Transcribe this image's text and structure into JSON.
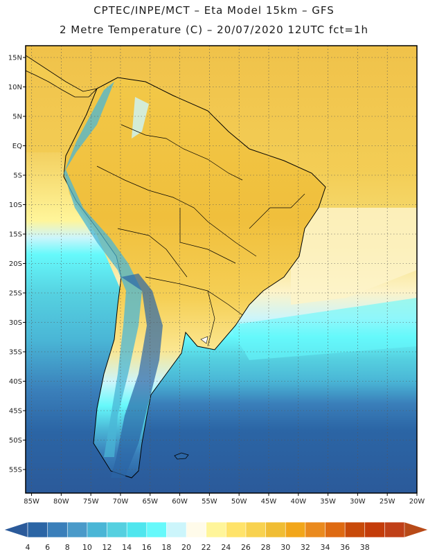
{
  "title": {
    "line1": "CPTEC/INPE/MCT –  Eta Model 15km – GFS",
    "line2": "2 Metre Temperature (C) – 20/07/2020 12UTC fct=1h"
  },
  "map": {
    "lon_range": [
      -86,
      -20
    ],
    "lat_range": [
      -59,
      17
    ],
    "lon_ticks": [
      "85W",
      "80W",
      "75W",
      "70W",
      "65W",
      "60W",
      "55W",
      "50W",
      "45W",
      "40W",
      "35W",
      "30W",
      "25W",
      "20W"
    ],
    "lon_values": [
      -85,
      -80,
      -75,
      -70,
      -65,
      -60,
      -55,
      -50,
      -45,
      -40,
      -35,
      -30,
      -25,
      -20
    ],
    "lat_ticks": [
      "15N",
      "10N",
      "5N",
      "EQ",
      "5S",
      "10S",
      "15S",
      "20S",
      "25S",
      "30S",
      "35S",
      "40S",
      "45S",
      "50S",
      "55S"
    ],
    "lat_values": [
      15,
      10,
      5,
      0,
      -5,
      -10,
      -15,
      -20,
      -25,
      -30,
      -35,
      -40,
      -45,
      -50,
      -55
    ],
    "gridlines": "dotted"
  },
  "colorbar": {
    "labels": [
      "4",
      "6",
      "8",
      "10",
      "12",
      "14",
      "16",
      "18",
      "20",
      "22",
      "24",
      "26",
      "28",
      "30",
      "32",
      "34",
      "36",
      "38"
    ],
    "values": [
      4,
      6,
      8,
      10,
      12,
      14,
      16,
      18,
      20,
      22,
      24,
      26,
      28,
      30,
      32,
      34,
      36,
      38
    ],
    "colors": [
      "#2b65a5",
      "#3a7fba",
      "#4a9ac9",
      "#4ab6d6",
      "#55d0e0",
      "#4fe6ee",
      "#66f9fb",
      "#ccf5fb",
      "#fffbea",
      "#fff59a",
      "#ffe36a",
      "#f8d24f",
      "#f0bd34",
      "#f2a61a",
      "#ea8a1e",
      "#de6a12",
      "#c84a0a",
      "#c43c0a",
      "#c04018"
    ],
    "under_color": "#2b5a9a",
    "over_color": "#b84a18"
  }
}
